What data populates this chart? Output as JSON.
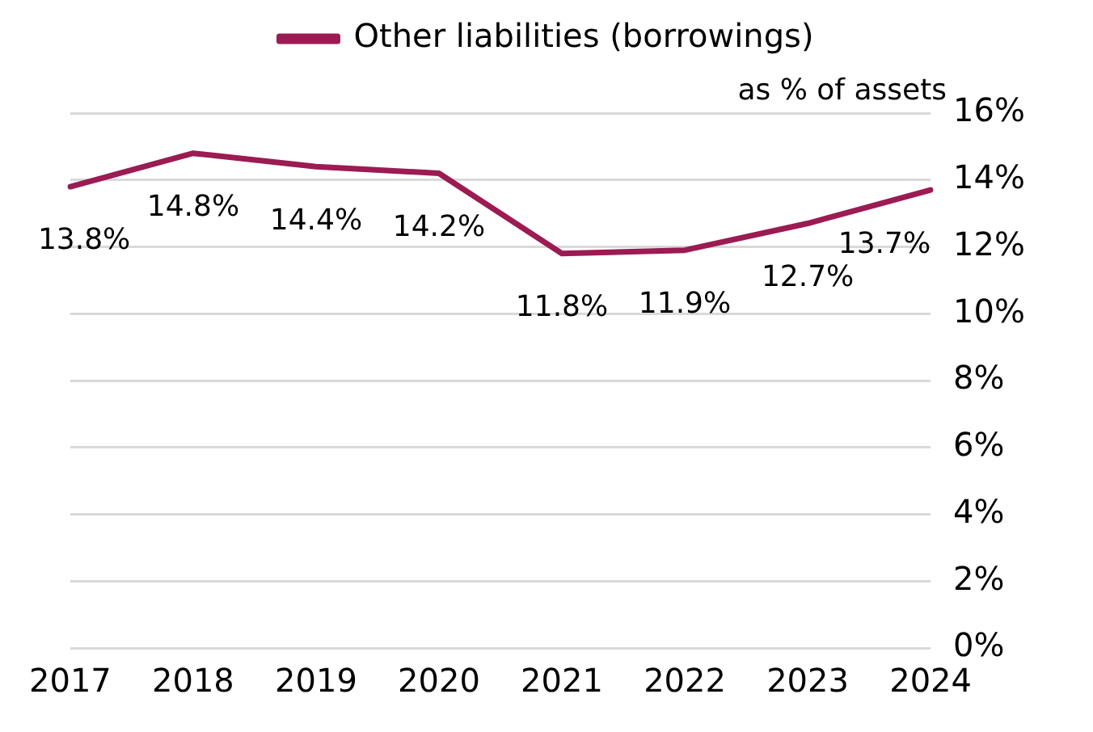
{
  "chart_data": {
    "type": "line",
    "categories": [
      "2017",
      "2018",
      "2019",
      "2020",
      "2021",
      "2022",
      "2023",
      "2024"
    ],
    "series": [
      {
        "name": "Other liabilities (borrowings)",
        "color": "#9b1b52",
        "values": [
          13.8,
          14.8,
          14.4,
          14.2,
          11.8,
          11.9,
          12.7,
          13.7
        ],
        "value_labels": [
          "13.8%",
          "14.8%",
          "14.4%",
          "14.2%",
          "11.8%",
          "11.9%",
          "12.7%",
          "13.7%"
        ]
      }
    ],
    "ylabel": "as % of assets",
    "ylim": [
      0,
      16
    ],
    "yticks": [
      {
        "value": 0,
        "label": "0%"
      },
      {
        "value": 2,
        "label": "2%"
      },
      {
        "value": 4,
        "label": "4%"
      },
      {
        "value": 6,
        "label": "6%"
      },
      {
        "value": 8,
        "label": "8%"
      },
      {
        "value": 10,
        "label": "10%"
      },
      {
        "value": 12,
        "label": "12%"
      },
      {
        "value": 14,
        "label": "14%"
      },
      {
        "value": 16,
        "label": "16%"
      }
    ],
    "grid": "y",
    "legend": "top",
    "marker": "none",
    "line_style": "solid"
  }
}
